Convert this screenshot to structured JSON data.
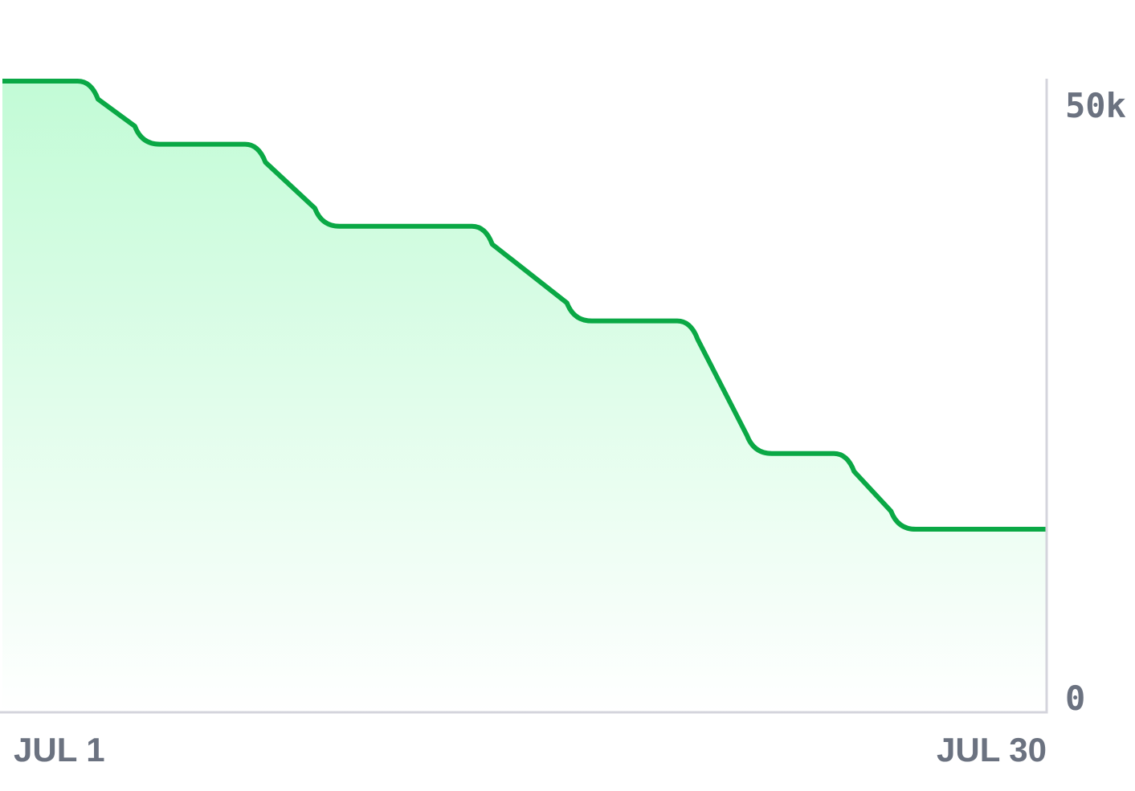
{
  "chart_data": {
    "type": "area",
    "title": "",
    "xlabel": "",
    "ylabel": "",
    "x_axis": {
      "start_label": "JUL 1",
      "end_label": "JUL 30",
      "range": [
        "JUL 1",
        "JUL 30"
      ]
    },
    "y_axis": {
      "position": "right",
      "tick_labels": [
        "50k",
        "0"
      ],
      "ylim": [
        0,
        50000
      ]
    },
    "grid": false,
    "legend": "none",
    "series": [
      {
        "line_color": "#0aa845",
        "fill_color_top": "#c2fbd6",
        "fill_color_bottom": "#ffffff",
        "step_interpolation": true,
        "values": [
          {
            "x": "JUL 1",
            "y": 50000
          },
          {
            "x": "JUL 5",
            "y": 45000
          },
          {
            "x": "JUL 10",
            "y": 38500
          },
          {
            "x": "JUL 17",
            "y": 31000
          },
          {
            "x": "JUL 22",
            "y": 20500
          },
          {
            "x": "JUL 26",
            "y": 14500
          },
          {
            "x": "JUL 30",
            "y": 14500
          }
        ]
      }
    ]
  },
  "colors": {
    "axis": "#d4d4dc",
    "tick_text": "#6b7280"
  }
}
